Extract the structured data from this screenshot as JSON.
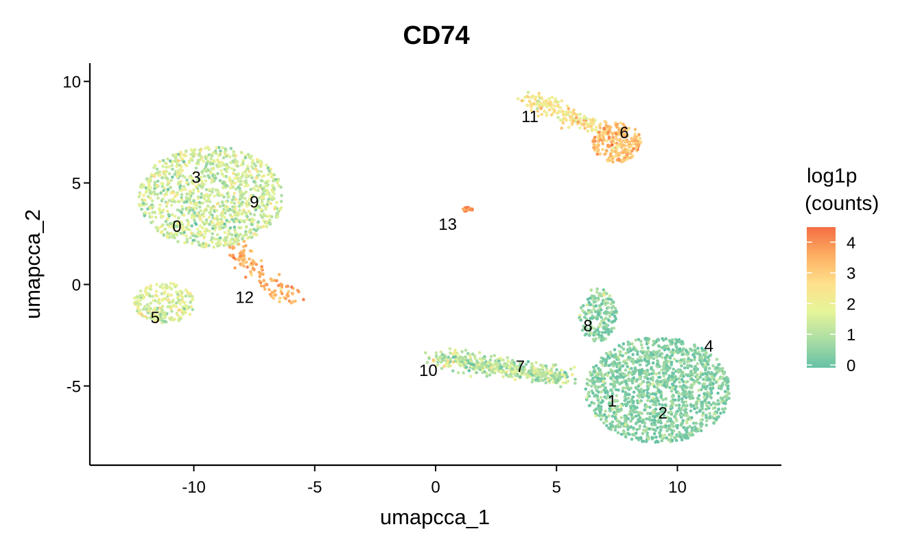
{
  "chart_data": {
    "type": "scatter",
    "title": "CD74",
    "xlabel": "umapcca_1",
    "ylabel": "umapcca_2",
    "xlim": [
      -14.3,
      14.3
    ],
    "ylim": [
      -8.9,
      10.9
    ],
    "x_ticks": [
      -10,
      -5,
      0,
      5,
      10
    ],
    "x_tick_labels": [
      "-10",
      "-5",
      "0",
      "5",
      "10"
    ],
    "y_ticks": [
      -5,
      0,
      5,
      10
    ],
    "y_tick_labels": [
      "-5",
      "0",
      "5",
      "10"
    ],
    "grid": false,
    "legend": {
      "title_line1": "log1p",
      "title_line2": "(counts)",
      "placement": "right",
      "min": 0,
      "max": 4.4,
      "ticks": [
        0,
        1,
        2,
        3,
        4
      ],
      "tick_labels": [
        "0",
        "1",
        "2",
        "3",
        "4"
      ],
      "colors": [
        "#66c2a5",
        "#abdda4",
        "#e6f598",
        "#fee08b",
        "#fdae61",
        "#f46d43"
      ]
    },
    "clusters": [
      {
        "label": "0",
        "x": -10.7,
        "y": 2.9,
        "value_mean": 1.4
      },
      {
        "label": "3",
        "x": -9.9,
        "y": 5.3,
        "value_mean": 1.4
      },
      {
        "label": "9",
        "x": -7.5,
        "y": 4.1,
        "value_mean": 1.6
      },
      {
        "label": "5",
        "x": -11.6,
        "y": -1.6,
        "value_mean": 1.6
      },
      {
        "label": "12",
        "x": -7.9,
        "y": -0.6,
        "value_mean": 3.4
      },
      {
        "label": "13",
        "x": 0.5,
        "y": 3.0,
        "value_mean": 3.8
      },
      {
        "label": "11",
        "x": 3.9,
        "y": 8.3,
        "value_mean": 2.4
      },
      {
        "label": "6",
        "x": 7.8,
        "y": 7.5,
        "value_mean": 3.2
      },
      {
        "label": "8",
        "x": 6.3,
        "y": -2.0,
        "value_mean": 0.5
      },
      {
        "label": "4",
        "x": 11.3,
        "y": -3.0,
        "value_mean": 0.4
      },
      {
        "label": "10",
        "x": -0.3,
        "y": -4.2,
        "value_mean": 1.2
      },
      {
        "label": "7",
        "x": 3.5,
        "y": -4.0,
        "value_mean": 0.7
      },
      {
        "label": "1",
        "x": 7.3,
        "y": -5.7,
        "value_mean": 0.4
      },
      {
        "label": "2",
        "x": 9.4,
        "y": -6.3,
        "value_mean": 0.4
      }
    ],
    "cluster_shapes": [
      {
        "name": "upper-left-blob",
        "cx": -9.3,
        "cy": 4.3,
        "rx": 3.0,
        "ry": 2.5,
        "n": 1100,
        "value_mean": 1.4,
        "value_sd": 0.55
      },
      {
        "name": "cluster-5-blob",
        "cx": -11.2,
        "cy": -0.9,
        "rx": 1.3,
        "ry": 1.0,
        "n": 220,
        "value_mean": 1.6,
        "value_sd": 0.5
      },
      {
        "name": "cluster-12-stream",
        "x0": -8.3,
        "y0": 1.7,
        "x1": -6.0,
        "y1": -0.8,
        "n": 120,
        "value_mean": 3.4,
        "value_sd": 0.4
      },
      {
        "name": "cluster-13-blob",
        "cx": 1.3,
        "cy": 3.7,
        "rx": 0.25,
        "ry": 0.1,
        "n": 20,
        "value_mean": 3.8,
        "value_sd": 0.3
      },
      {
        "name": "cluster-11-arm",
        "x0": 3.9,
        "y0": 9.2,
        "x1": 7.0,
        "y1": 7.5,
        "n": 180,
        "value_mean": 2.4,
        "value_sd": 0.5
      },
      {
        "name": "cluster-6-blob",
        "cx": 7.5,
        "cy": 7.0,
        "rx": 1.0,
        "ry": 1.0,
        "n": 260,
        "value_mean": 3.2,
        "value_sd": 0.45
      },
      {
        "name": "cluster-8-arm",
        "cx": 6.7,
        "cy": -1.5,
        "rx": 0.8,
        "ry": 1.3,
        "n": 180,
        "value_mean": 0.5,
        "value_sd": 0.5
      },
      {
        "name": "cluster-10-7-tail",
        "x0": 0.0,
        "y0": -3.6,
        "x1": 5.5,
        "y1": -4.6,
        "n": 480,
        "value_mean": 1.1,
        "value_sd": 0.6
      },
      {
        "name": "lower-right-blob",
        "cx": 9.2,
        "cy": -5.2,
        "rx": 3.0,
        "ry": 2.6,
        "n": 1450,
        "value_mean": 0.4,
        "value_sd": 0.45
      }
    ]
  }
}
